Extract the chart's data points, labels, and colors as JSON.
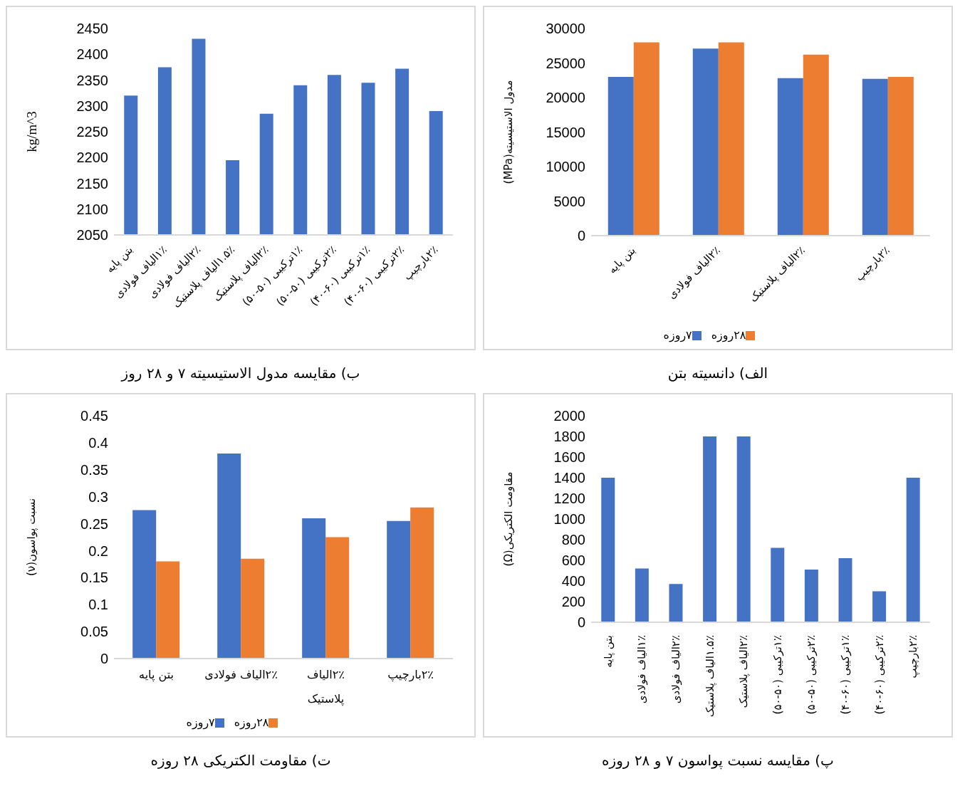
{
  "chart_data": [
    {
      "type": "bar",
      "ylabel": "kg/m^3",
      "categories": [
        "بتن پایه",
        "۱٪الیاف فولادی",
        "۲٪الیاف فولادی",
        "۱.۵٪الیاف پلاستیک",
        "۲٪الیاف پلاستیک",
        "۱٪ترکیبی (۵۰-۵۰)",
        "۲٪ترکیبی (۵۰-۵۰)",
        "۱٪ترکیبی (۶۰-۴۰)",
        "۲٪ترکیبی (۶۰-۴۰)",
        "۲٪بارچیپ"
      ],
      "values": [
        2320,
        2375,
        2430,
        2195,
        2285,
        2340,
        2360,
        2345,
        2372,
        2290
      ],
      "color": "#4472c4",
      "ylim": [
        2050,
        2450
      ],
      "yticks": [
        2050,
        2100,
        2150,
        2200,
        2250,
        2300,
        2350,
        2400,
        2450
      ],
      "annotations": [
        "ب)  مقایسه مدول الاستیسیته ۷ و ۲۸ روز"
      ]
    },
    {
      "type": "bar",
      "ylabel": "مدول الاستیسیته(MPa)",
      "categories": [
        "بتن پایه",
        "۲٪الیاف فولادی",
        "۲٪الیاف پلاستیک",
        "۲٪بارچیپ"
      ],
      "series": [
        {
          "name": "۷روزه",
          "color": "#4472c4",
          "values": [
            23000,
            27100,
            22800,
            22700
          ]
        },
        {
          "name": "۲۸روزه",
          "color": "#ed7d31",
          "values": [
            28000,
            28000,
            26200,
            23000
          ]
        }
      ],
      "ylim": [
        0,
        30000
      ],
      "yticks": [
        0,
        5000,
        10000,
        15000,
        20000,
        25000,
        30000
      ],
      "legend": "bottom",
      "annotations": [
        "الف) دانسیته بتن"
      ]
    },
    {
      "type": "bar",
      "ylabel": "نسبت پواسون(ν)",
      "categories": [
        "بتن پایه",
        "۲٪الیاف فولادی",
        "۲٪الیاف پلاستیک",
        "۲٪بارچیپ"
      ],
      "series": [
        {
          "name": "۷روزه",
          "color": "#4472c4",
          "values": [
            0.275,
            0.38,
            0.26,
            0.255
          ]
        },
        {
          "name": "۲۸روزه",
          "color": "#ed7d31",
          "values": [
            0.18,
            0.185,
            0.225,
            0.28
          ]
        }
      ],
      "ylim": [
        0,
        0.45
      ],
      "yticks": [
        0,
        0.05,
        0.1,
        0.15,
        0.2,
        0.25,
        0.3,
        0.35,
        0.4,
        0.45
      ],
      "legend": "bottom",
      "annotations": [
        "ت) مقاومت الکتریکی ۲۸ روزه"
      ]
    },
    {
      "type": "bar",
      "ylabel": "مقاومت الکتریکی(Ω)",
      "categories": [
        "بتن پایه",
        "۱٪الیاف فولادی",
        "۲٪الیاف فولادی",
        "۱.۵٪الیاف پلاستیک",
        "۲٪الیاف پلاستیک",
        "۱٪ترکیبی (۵۰-۵۰)",
        "۲٪ترکیبی (۵۰-۵۰)",
        "۱٪ترکیبی (۶۰-۴۰)",
        "۲٪ترکیبی (۶۰-۴۰)",
        "۲٪بارچیپ"
      ],
      "values": [
        1400,
        520,
        370,
        1800,
        1800,
        720,
        510,
        620,
        300,
        1400
      ],
      "color": "#4472c4",
      "ylim": [
        0,
        2000
      ],
      "yticks": [
        0,
        200,
        400,
        600,
        800,
        1000,
        1200,
        1400,
        1600,
        1800,
        2000
      ],
      "annotations": [
        "پ) مقایسه نسبت پواسون ۷ و ۲۸ روزه"
      ]
    }
  ]
}
